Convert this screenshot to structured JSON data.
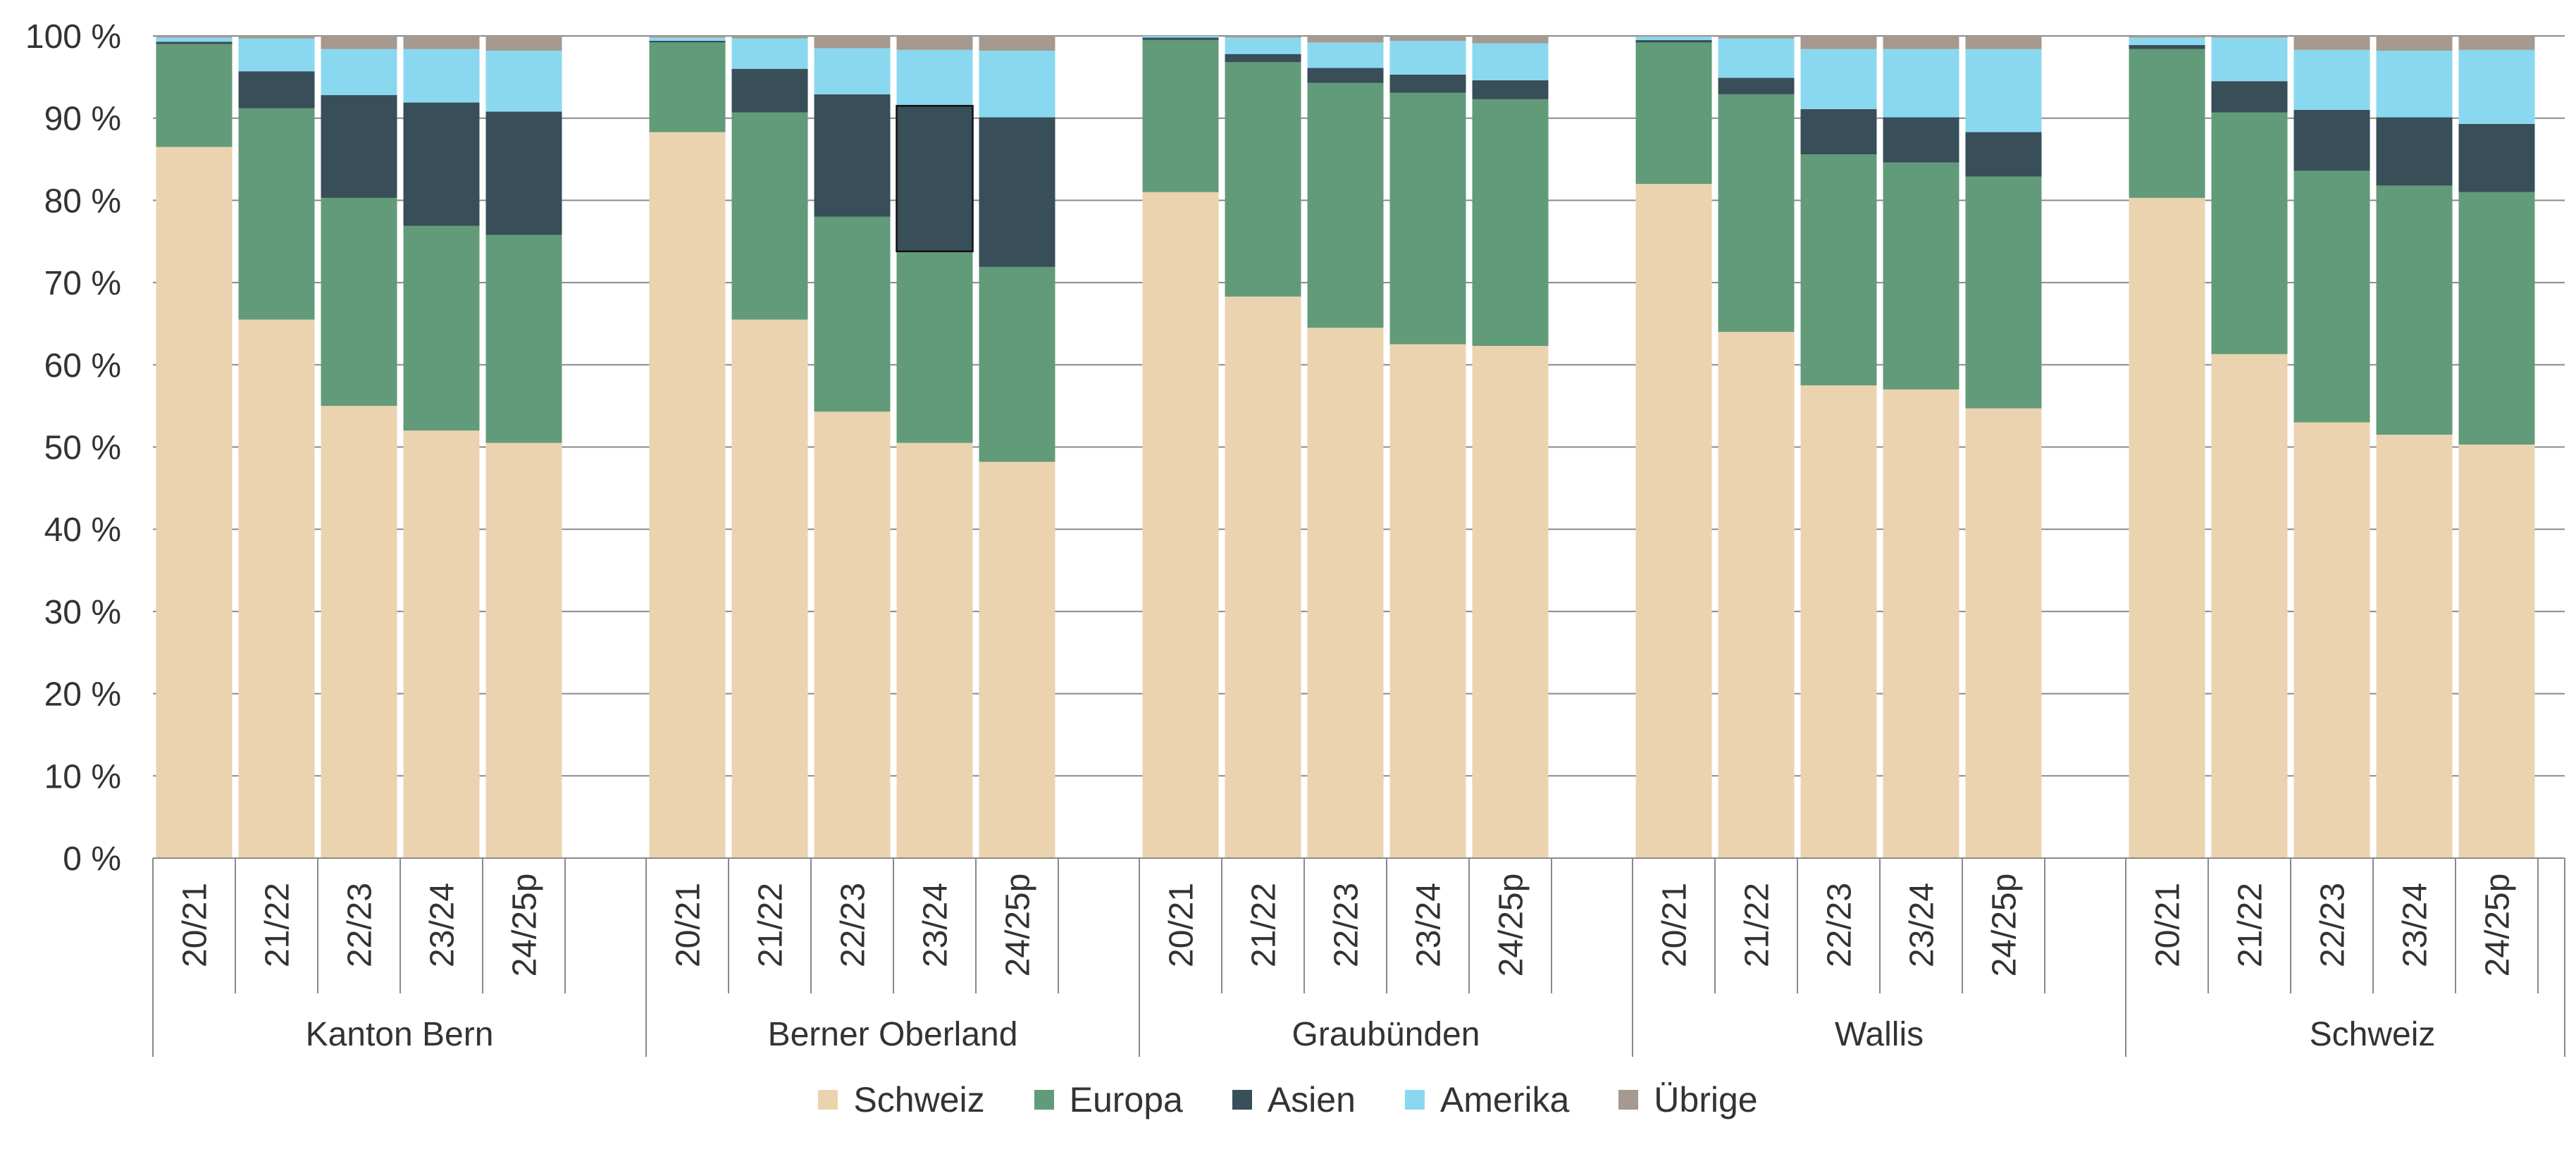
{
  "chart_data": {
    "type": "bar",
    "stacked": true,
    "y_tick_labels": [
      "0 %",
      "10 %",
      "20 %",
      "30 %",
      "40 %",
      "50 %",
      "60 %",
      "70 %",
      "80 %",
      "90 %",
      "100 %"
    ],
    "ylim": [
      0,
      100
    ],
    "grid": true,
    "legend_position": "bottom",
    "groups": [
      {
        "name": "Kanton Bern",
        "categories": [
          "20/21",
          "21/22",
          "22/23",
          "23/24",
          "24/25p"
        ]
      },
      {
        "name": "Berner Oberland",
        "categories": [
          "20/21",
          "21/22",
          "22/23",
          "23/24",
          "24/25p"
        ]
      },
      {
        "name": "Graubünden",
        "categories": [
          "20/21",
          "21/22",
          "22/23",
          "23/24",
          "24/25p"
        ]
      },
      {
        "name": "Wallis",
        "categories": [
          "20/21",
          "21/22",
          "22/23",
          "23/24",
          "24/25p"
        ]
      },
      {
        "name": "Schweiz",
        "categories": [
          "20/21",
          "21/22",
          "22/23",
          "23/24",
          "24/25p"
        ]
      }
    ],
    "series": [
      {
        "name": "Schweiz",
        "color": "#ebd3b0",
        "values": [
          86.5,
          65.5,
          55,
          52,
          50.5,
          88.3,
          65.5,
          54.3,
          50.5,
          48.2,
          81,
          68.3,
          64.5,
          62.5,
          62.3,
          82,
          64,
          57.5,
          57,
          54.7,
          80.3,
          61.3,
          53,
          51.5,
          50.3
        ]
      },
      {
        "name": "Europa",
        "color": "#629b79",
        "values": [
          12.5,
          25.7,
          25.3,
          24.9,
          25.3,
          10.9,
          25.2,
          23.7,
          23.3,
          23.7,
          18.5,
          28.5,
          29.8,
          30.6,
          30.0,
          17.2,
          28.9,
          28.1,
          27.6,
          28.2,
          18.1,
          29.4,
          30.6,
          30.3,
          30.7
        ]
      },
      {
        "name": "Asien",
        "color": "#384e58",
        "values": [
          0.3,
          4.5,
          12.5,
          15,
          15,
          0.2,
          5.3,
          14.9,
          17.7,
          18.2,
          0.3,
          1,
          1.8,
          2.2,
          2.3,
          0.3,
          2,
          5.5,
          5.5,
          5.4,
          0.5,
          3.8,
          7.4,
          8.3,
          8.3
        ]
      },
      {
        "name": "Amerika",
        "color": "#8ad8ef",
        "values": [
          0.5,
          4,
          5.6,
          6.5,
          7.4,
          0.4,
          3.7,
          5.6,
          6.8,
          8.1,
          0.2,
          2,
          3.1,
          4.1,
          4.5,
          0.4,
          4.8,
          7.3,
          8.3,
          10.1,
          0.9,
          5.3,
          7.3,
          8.1,
          9.0
        ]
      },
      {
        "name": "Übrige",
        "color": "#a59990",
        "values": [
          0.2,
          0.3,
          1.6,
          1.6,
          1.8,
          0.2,
          0.3,
          1.5,
          1.7,
          1.8,
          0,
          0.2,
          0.8,
          0.6,
          0.9,
          0.1,
          0.3,
          1.6,
          1.6,
          1.6,
          0.2,
          0.2,
          1.7,
          1.8,
          1.7
        ]
      }
    ]
  }
}
